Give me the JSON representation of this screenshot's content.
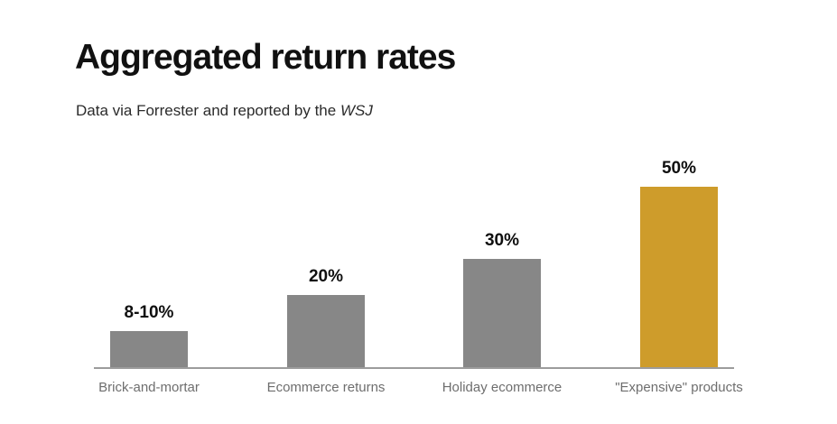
{
  "page": {
    "background": "#ffffff"
  },
  "header": {
    "title": "Aggregated return rates",
    "subtitle_prefix": "Data via Forrester and reported by the ",
    "subtitle_source": "WSJ"
  },
  "chart_data": {
    "type": "bar",
    "title": "Aggregated return rates",
    "subtitle": "Data via Forrester and reported by the WSJ",
    "categories": [
      "Brick-and-mortar",
      "Ecommerce returns",
      "Holiday ecommerce",
      "\"Expensive\" products"
    ],
    "values": [
      10,
      20,
      30,
      50
    ],
    "value_labels": [
      "8-10%",
      "20%",
      "30%",
      "50%"
    ],
    "unit": "%",
    "ylim": [
      0,
      50
    ],
    "grid": false,
    "legend": false,
    "bar_colors": [
      "#878787",
      "#878787",
      "#878787",
      "#CE9C2B"
    ],
    "bar_color_default": "#878787",
    "highlight_color": "#CE9C2B",
    "axis_color": "#9c9c9c",
    "value_label_color": "#0f0f0f",
    "category_label_color": "#6e6e6e"
  }
}
